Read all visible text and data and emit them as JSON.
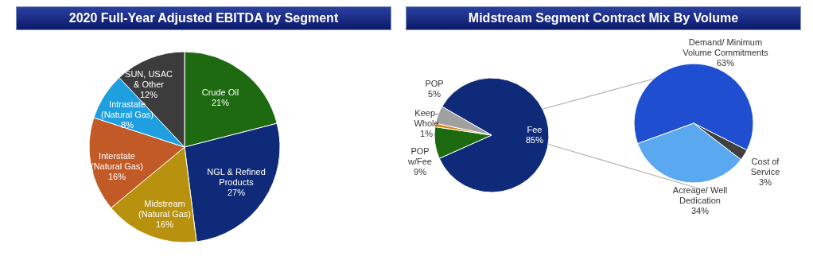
{
  "chart_data": [
    {
      "type": "pie",
      "title": "2020 Full-Year Adjusted EBITDA by Segment",
      "categories": [
        "Crude Oil",
        "NGL & Refined Products",
        "Midstream (Natural Gas)",
        "Interstate (Natural Gas)",
        "Intrastate (Natural Gas)",
        "SUN, USAC & Other"
      ],
      "values": [
        21,
        27,
        16,
        16,
        8,
        12
      ],
      "value_labels": [
        "21%",
        "27%",
        "16%",
        "16%",
        "8%",
        "12%"
      ],
      "colors": [
        "#1d6a10",
        "#0f2a78",
        "#b8920e",
        "#c25a28",
        "#1e9fe0",
        "#3c3c3c"
      ],
      "data_labels": true,
      "legend": false
    },
    {
      "type": "pie",
      "title": "Midstream Segment Contract Mix By Volume",
      "categories": [
        "Fee",
        "POP w/Fee",
        "Keep-Whole",
        "POP"
      ],
      "values": [
        85,
        9,
        1,
        5
      ],
      "value_labels": [
        "85%",
        "9%",
        "1%",
        "5%"
      ],
      "colors": [
        "#0f2a78",
        "#1d6a10",
        "#d98a1a",
        "#a0a0a0"
      ],
      "data_labels": true,
      "legend": false
    },
    {
      "type": "pie",
      "categories": [
        "Demand/ Minimum Volume Commitments",
        "Cost of Service",
        "Acreage/ Well Dedication"
      ],
      "values": [
        63,
        3,
        34
      ],
      "value_labels": [
        "63%",
        "3%",
        "34%"
      ],
      "colors": [
        "#1f4fd0",
        "#404040",
        "#5aa8f0"
      ],
      "data_labels": true,
      "legend": false
    }
  ]
}
